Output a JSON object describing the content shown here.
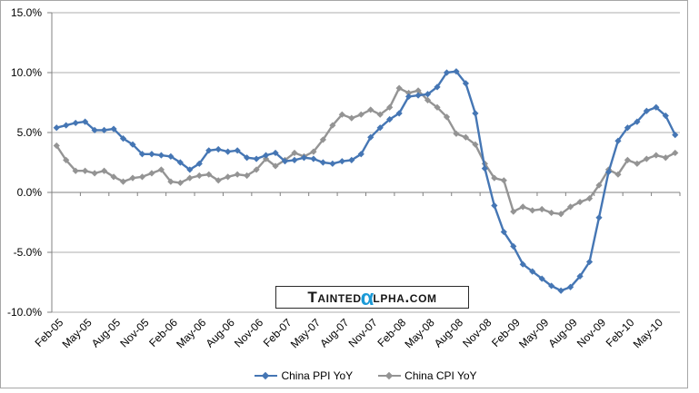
{
  "chart_data": {
    "type": "line",
    "title": "",
    "xlabel": "",
    "ylabel": "",
    "ylim": [
      -10,
      15
    ],
    "grid": "horizontal",
    "legend_position": "bottom-center",
    "ytick_labels": [
      "15.0%",
      "10.0%",
      "5.0%",
      "0.0%",
      "-5.0%",
      "-10.0%"
    ],
    "ytick_values": [
      15,
      10,
      5,
      0,
      -5,
      -10
    ],
    "xtick_every": 3,
    "xtick_labels": [
      "Feb-05",
      "May-05",
      "Aug-05",
      "Nov-05",
      "Feb-06",
      "May-06",
      "Aug-06",
      "Nov-06",
      "Feb-07",
      "May-07",
      "Aug-07",
      "Nov-07",
      "Feb-08",
      "May-08",
      "Aug-08",
      "Nov-08",
      "Feb-09",
      "May-09",
      "Aug-09",
      "Nov-09",
      "Feb-10",
      "May-10"
    ],
    "x": [
      "Feb-05",
      "Mar-05",
      "Apr-05",
      "May-05",
      "Jun-05",
      "Jul-05",
      "Aug-05",
      "Sep-05",
      "Oct-05",
      "Nov-05",
      "Dec-05",
      "Jan-06",
      "Feb-06",
      "Mar-06",
      "Apr-06",
      "May-06",
      "Jun-06",
      "Jul-06",
      "Aug-06",
      "Sep-06",
      "Oct-06",
      "Nov-06",
      "Dec-06",
      "Jan-07",
      "Feb-07",
      "Mar-07",
      "Apr-07",
      "May-07",
      "Jun-07",
      "Jul-07",
      "Aug-07",
      "Sep-07",
      "Oct-07",
      "Nov-07",
      "Dec-07",
      "Jan-08",
      "Feb-08",
      "Mar-08",
      "Apr-08",
      "May-08",
      "Jun-08",
      "Jul-08",
      "Aug-08",
      "Sep-08",
      "Oct-08",
      "Nov-08",
      "Dec-08",
      "Jan-09",
      "Feb-09",
      "Mar-09",
      "Apr-09",
      "May-09",
      "Jun-09",
      "Jul-09",
      "Aug-09",
      "Sep-09",
      "Oct-09",
      "Nov-09",
      "Dec-09",
      "Jan-10",
      "Feb-10",
      "Mar-10",
      "Apr-10",
      "May-10",
      "Jun-10",
      "Jul-10"
    ],
    "series": [
      {
        "name": "China PPI YoY",
        "color": "#4576b4",
        "marker": "diamond",
        "values": [
          5.4,
          5.6,
          5.8,
          5.9,
          5.2,
          5.2,
          5.3,
          4.5,
          4.0,
          3.2,
          3.2,
          3.1,
          3.0,
          2.5,
          1.9,
          2.4,
          3.5,
          3.6,
          3.4,
          3.5,
          2.9,
          2.8,
          3.1,
          3.3,
          2.6,
          2.7,
          2.9,
          2.8,
          2.5,
          2.4,
          2.6,
          2.7,
          3.2,
          4.6,
          5.4,
          6.1,
          6.6,
          8.0,
          8.1,
          8.2,
          8.8,
          10.0,
          10.1,
          9.1,
          6.6,
          2.0,
          -1.1,
          -3.3,
          -4.5,
          -6.0,
          -6.6,
          -7.2,
          -7.8,
          -8.2,
          -7.9,
          -7.0,
          -5.8,
          -2.1,
          1.7,
          4.3,
          5.4,
          5.9,
          6.8,
          7.1,
          6.4,
          4.8
        ]
      },
      {
        "name": "China CPI YoY",
        "color": "#949494",
        "marker": "diamond",
        "values": [
          3.9,
          2.7,
          1.8,
          1.8,
          1.6,
          1.8,
          1.3,
          0.9,
          1.2,
          1.3,
          1.6,
          1.9,
          0.9,
          0.8,
          1.2,
          1.4,
          1.5,
          1.0,
          1.3,
          1.5,
          1.4,
          1.9,
          2.8,
          2.2,
          2.7,
          3.3,
          3.0,
          3.4,
          4.4,
          5.6,
          6.5,
          6.2,
          6.5,
          6.9,
          6.5,
          7.1,
          8.7,
          8.3,
          8.5,
          7.7,
          7.1,
          6.3,
          4.9,
          4.6,
          4.0,
          2.4,
          1.2,
          1.0,
          -1.6,
          -1.2,
          -1.5,
          -1.4,
          -1.7,
          -1.8,
          -1.2,
          -0.8,
          -0.5,
          0.6,
          1.9,
          1.5,
          2.7,
          2.4,
          2.8,
          3.1,
          2.9,
          3.3
        ]
      }
    ]
  },
  "watermark": {
    "prefix": "Tainted",
    "alpha": "α",
    "suffix": "lpha.com",
    "alpha_color": "#1b9ad7"
  },
  "colors": {
    "background": "#ffffff",
    "gridline": "#adadad",
    "axis": "#808080",
    "border": "#a6a6a6",
    "label_text": "#000000"
  }
}
